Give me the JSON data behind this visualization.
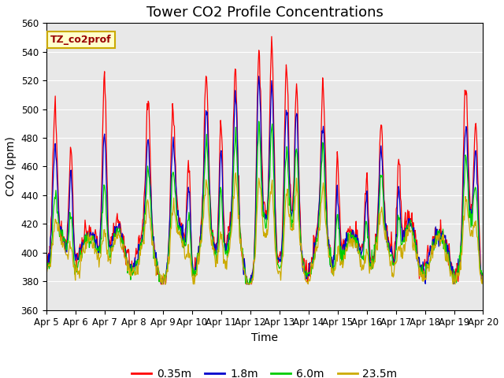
{
  "title": "Tower CO2 Profile Concentrations",
  "xlabel": "Time",
  "ylabel": "CO2 (ppm)",
  "ylim": [
    360,
    560
  ],
  "yticks": [
    360,
    380,
    400,
    420,
    440,
    460,
    480,
    500,
    520,
    540,
    560
  ],
  "xtick_labels": [
    "Apr 5",
    "Apr 6",
    "Apr 7",
    "Apr 8",
    "Apr 9",
    "Apr 10",
    "Apr 11",
    "Apr 12",
    "Apr 13",
    "Apr 14",
    "Apr 15",
    "Apr 16",
    "Apr 17",
    "Apr 18",
    "Apr 19",
    "Apr 20"
  ],
  "colors": {
    "0.35m": "#ff0000",
    "1.8m": "#0000cc",
    "6.0m": "#00cc00",
    "23.5m": "#ccaa00"
  },
  "legend_labels": [
    "0.35m",
    "1.8m",
    "6.0m",
    "23.5m"
  ],
  "annotation_text": "TZ_co2prof",
  "annotation_facecolor": "#ffffcc",
  "annotation_edgecolor": "#ccaa00",
  "bg_color": "#e8e8e8",
  "title_fontsize": 13,
  "axis_fontsize": 10,
  "tick_fontsize": 8.5,
  "n_points": 720
}
